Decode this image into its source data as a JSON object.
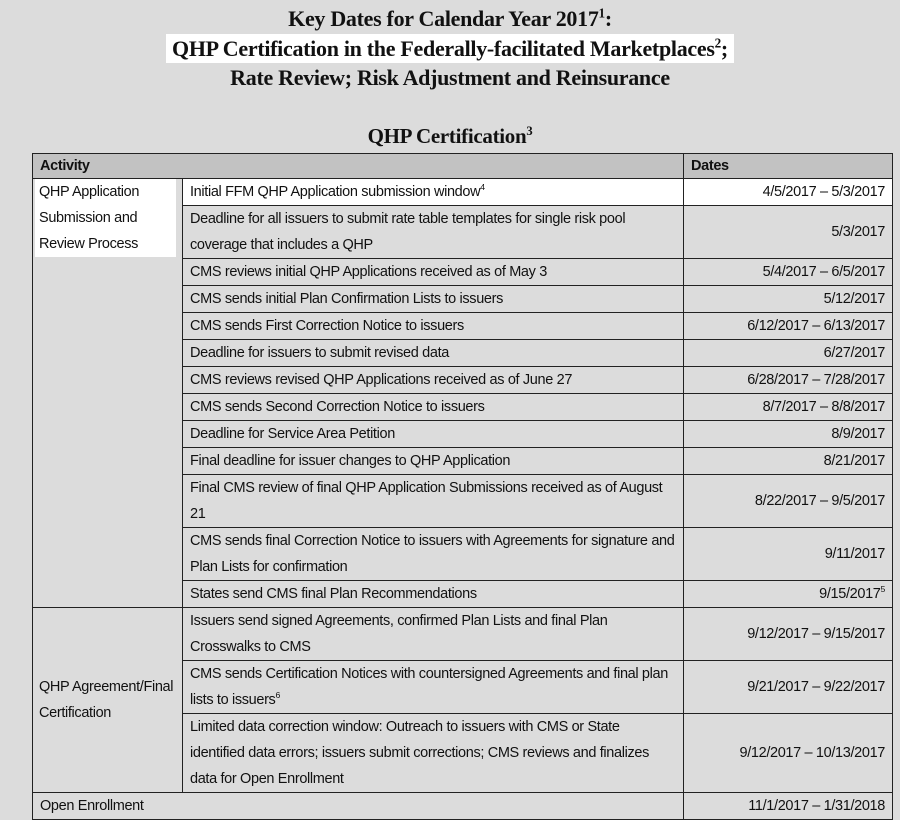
{
  "title": {
    "line1": "Key Dates for Calendar Year 2017",
    "line1_sup": "1",
    "line1_suffix": ":",
    "line2": "QHP Certification in the Federally-facilitated Marketplaces",
    "line2_sup": "2",
    "line2_suffix": ";",
    "line3": "Rate Review; Risk Adjustment and Reinsurance"
  },
  "section": {
    "title": "QHP Certification",
    "sup": "3"
  },
  "table": {
    "headers": {
      "activity": "Activity",
      "dates": "Dates"
    },
    "groups": [
      {
        "name": "QHP Application Submission and Review Process",
        "rows": [
          {
            "activity": "Initial FFM QHP Application submission window",
            "sup": "4",
            "dates": "4/5/2017 – 5/3/2017"
          },
          {
            "activity": "Deadline for all issuers to submit rate table templates for single risk pool coverage that includes a QHP",
            "dates": "5/3/2017"
          },
          {
            "activity": "CMS reviews initial QHP Applications received as of May 3",
            "dates": "5/4/2017 – 6/5/2017"
          },
          {
            "activity": "CMS sends initial Plan Confirmation Lists to issuers",
            "dates": "5/12/2017"
          },
          {
            "activity": "CMS sends First Correction Notice to issuers",
            "dates": "6/12/2017 – 6/13/2017"
          },
          {
            "activity": "Deadline for issuers to  submit revised data",
            "dates": "6/27/2017"
          },
          {
            "activity": "CMS reviews revised QHP Applications received as of June 27",
            "dates": "6/28/2017 – 7/28/2017"
          },
          {
            "activity": "CMS sends Second Correction Notice  to issuers",
            "dates": "8/7/2017 – 8/8/2017"
          },
          {
            "activity": "Deadline for Service Area Petition",
            "dates": "8/9/2017"
          },
          {
            "activity": "Final deadline for issuer changes to QHP Application",
            "dates": "8/21/2017"
          },
          {
            "activity": "Final CMS review of final QHP Application Submissions received as of August 21",
            "dates": "8/22/2017 – 9/5/2017"
          },
          {
            "activity": "CMS sends final Correction Notice to issuers with Agreements for signature and Plan Lists for confirmation",
            "dates": "9/11/2017"
          },
          {
            "activity": "States send CMS final Plan Recommendations",
            "dates": "9/15/2017",
            "dates_sup": "5"
          }
        ]
      },
      {
        "name": "QHP Agreement/Final Certification",
        "rows": [
          {
            "activity": "Issuers send signed Agreements, confirmed Plan Lists and final Plan Crosswalks to CMS",
            "dates": "9/12/2017 – 9/15/2017"
          },
          {
            "activity": "CMS sends Certification Notices with countersigned Agreements and final plan lists to issuers",
            "sup": "6",
            "dates": "9/21/2017 – 9/22/2017"
          },
          {
            "activity": "Limited data correction window: Outreach to issuers with CMS or State identified data errors; issuers submit corrections; CMS reviews and finalizes data for Open Enrollment",
            "dates": "9/12/2017 – 10/13/2017"
          }
        ]
      }
    ],
    "open_enrollment": {
      "activity": "Open Enrollment",
      "dates": "11/1/2017 – 1/31/2018"
    }
  },
  "colors": {
    "background": "#dcdcdc",
    "header": "#c2c2c2",
    "highlight": "#ffffff"
  }
}
